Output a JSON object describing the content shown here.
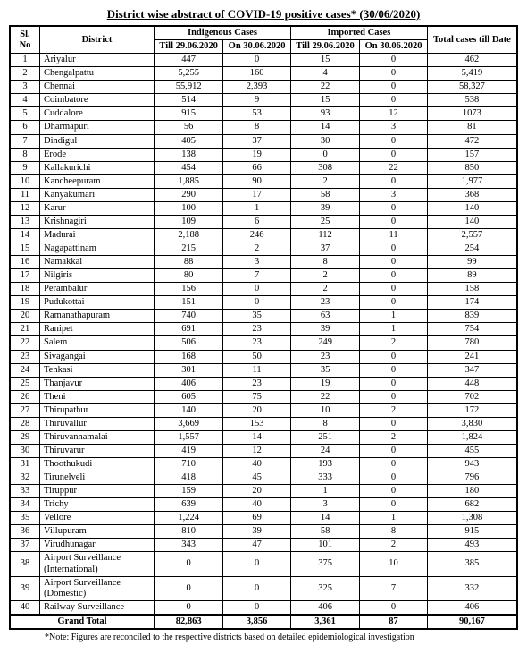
{
  "title": "District wise abstract of COVID-19 positive cases* (30/06/2020)",
  "headers": {
    "sl": "Sl. No",
    "district": "District",
    "indigenous": "Indigenous Cases",
    "imported": "Imported Cases",
    "till": "Till 29.06.2020",
    "on": "On 30.06.2020",
    "total": "Total cases till Date"
  },
  "rows": [
    {
      "sl": "1",
      "d": "Ariyalur",
      "i_t": "447",
      "i_o": "0",
      "m_t": "15",
      "m_o": "0",
      "tot": "462"
    },
    {
      "sl": "2",
      "d": "Chengalpattu",
      "i_t": "5,255",
      "i_o": "160",
      "m_t": "4",
      "m_o": "0",
      "tot": "5,419"
    },
    {
      "sl": "3",
      "d": "Chennai",
      "i_t": "55,912",
      "i_o": "2,393",
      "m_t": "22",
      "m_o": "0",
      "tot": "58,327"
    },
    {
      "sl": "4",
      "d": "Coimbatore",
      "i_t": "514",
      "i_o": "9",
      "m_t": "15",
      "m_o": "0",
      "tot": "538"
    },
    {
      "sl": "5",
      "d": "Cuddalore",
      "i_t": "915",
      "i_o": "53",
      "m_t": "93",
      "m_o": "12",
      "tot": "1073"
    },
    {
      "sl": "6",
      "d": "Dharmapuri",
      "i_t": "56",
      "i_o": "8",
      "m_t": "14",
      "m_o": "3",
      "tot": "81"
    },
    {
      "sl": "7",
      "d": "Dindigul",
      "i_t": "405",
      "i_o": "37",
      "m_t": "30",
      "m_o": "0",
      "tot": "472"
    },
    {
      "sl": "8",
      "d": "Erode",
      "i_t": "138",
      "i_o": "19",
      "m_t": "0",
      "m_o": "0",
      "tot": "157"
    },
    {
      "sl": "9",
      "d": "Kallakurichi",
      "i_t": "454",
      "i_o": "66",
      "m_t": "308",
      "m_o": "22",
      "tot": "850"
    },
    {
      "sl": "10",
      "d": "Kancheepuram",
      "i_t": "1,885",
      "i_o": "90",
      "m_t": "2",
      "m_o": "0",
      "tot": "1,977"
    },
    {
      "sl": "11",
      "d": "Kanyakumari",
      "i_t": "290",
      "i_o": "17",
      "m_t": "58",
      "m_o": "3",
      "tot": "368"
    },
    {
      "sl": "12",
      "d": "Karur",
      "i_t": "100",
      "i_o": "1",
      "m_t": "39",
      "m_o": "0",
      "tot": "140"
    },
    {
      "sl": "13",
      "d": "Krishnagiri",
      "i_t": "109",
      "i_o": "6",
      "m_t": "25",
      "m_o": "0",
      "tot": "140"
    },
    {
      "sl": "14",
      "d": "Madurai",
      "i_t": "2,188",
      "i_o": "246",
      "m_t": "112",
      "m_o": "11",
      "tot": "2,557"
    },
    {
      "sl": "15",
      "d": "Nagapattinam",
      "i_t": "215",
      "i_o": "2",
      "m_t": "37",
      "m_o": "0",
      "tot": "254"
    },
    {
      "sl": "16",
      "d": "Namakkal",
      "i_t": "88",
      "i_o": "3",
      "m_t": "8",
      "m_o": "0",
      "tot": "99"
    },
    {
      "sl": "17",
      "d": "Nilgiris",
      "i_t": "80",
      "i_o": "7",
      "m_t": "2",
      "m_o": "0",
      "tot": "89"
    },
    {
      "sl": "18",
      "d": "Perambalur",
      "i_t": "156",
      "i_o": "0",
      "m_t": "2",
      "m_o": "0",
      "tot": "158"
    },
    {
      "sl": "19",
      "d": "Pudukottai",
      "i_t": "151",
      "i_o": "0",
      "m_t": "23",
      "m_o": "0",
      "tot": "174"
    },
    {
      "sl": "20",
      "d": "Ramanathapuram",
      "i_t": "740",
      "i_o": "35",
      "m_t": "63",
      "m_o": "1",
      "tot": "839"
    },
    {
      "sl": "21",
      "d": "Ranipet",
      "i_t": "691",
      "i_o": "23",
      "m_t": "39",
      "m_o": "1",
      "tot": "754"
    },
    {
      "sl": "22",
      "d": "Salem",
      "i_t": "506",
      "i_o": "23",
      "m_t": "249",
      "m_o": "2",
      "tot": "780"
    },
    {
      "sl": "23",
      "d": "Sivagangai",
      "i_t": "168",
      "i_o": "50",
      "m_t": "23",
      "m_o": "0",
      "tot": "241"
    },
    {
      "sl": "24",
      "d": "Tenkasi",
      "i_t": "301",
      "i_o": "11",
      "m_t": "35",
      "m_o": "0",
      "tot": "347"
    },
    {
      "sl": "25",
      "d": "Thanjavur",
      "i_t": "406",
      "i_o": "23",
      "m_t": "19",
      "m_o": "0",
      "tot": "448"
    },
    {
      "sl": "26",
      "d": "Theni",
      "i_t": "605",
      "i_o": "75",
      "m_t": "22",
      "m_o": "0",
      "tot": "702"
    },
    {
      "sl": "27",
      "d": "Thirupathur",
      "i_t": "140",
      "i_o": "20",
      "m_t": "10",
      "m_o": "2",
      "tot": "172"
    },
    {
      "sl": "28",
      "d": "Thiruvallur",
      "i_t": "3,669",
      "i_o": "153",
      "m_t": "8",
      "m_o": "0",
      "tot": "3,830"
    },
    {
      "sl": "29",
      "d": "Thiruvannamalai",
      "i_t": "1,557",
      "i_o": "14",
      "m_t": "251",
      "m_o": "2",
      "tot": "1,824"
    },
    {
      "sl": "30",
      "d": "Thiruvarur",
      "i_t": "419",
      "i_o": "12",
      "m_t": "24",
      "m_o": "0",
      "tot": "455"
    },
    {
      "sl": "31",
      "d": "Thoothukudi",
      "i_t": "710",
      "i_o": "40",
      "m_t": "193",
      "m_o": "0",
      "tot": "943"
    },
    {
      "sl": "32",
      "d": "Tirunelveli",
      "i_t": "418",
      "i_o": "45",
      "m_t": "333",
      "m_o": "0",
      "tot": "796"
    },
    {
      "sl": "33",
      "d": "Tiruppur",
      "i_t": "159",
      "i_o": "20",
      "m_t": "1",
      "m_o": "0",
      "tot": "180"
    },
    {
      "sl": "34",
      "d": "Trichy",
      "i_t": "639",
      "i_o": "40",
      "m_t": "3",
      "m_o": "0",
      "tot": "682"
    },
    {
      "sl": "35",
      "d": "Vellore",
      "i_t": "1,224",
      "i_o": "69",
      "m_t": "14",
      "m_o": "1",
      "tot": "1,308"
    },
    {
      "sl": "36",
      "d": "Villupuram",
      "i_t": "810",
      "i_o": "39",
      "m_t": "58",
      "m_o": "8",
      "tot": "915"
    },
    {
      "sl": "37",
      "d": "Virudhunagar",
      "i_t": "343",
      "i_o": "47",
      "m_t": "101",
      "m_o": "2",
      "tot": "493"
    },
    {
      "sl": "38",
      "d": "Airport Surveillance (International)",
      "i_t": "0",
      "i_o": "0",
      "m_t": "375",
      "m_o": "10",
      "tot": "385"
    },
    {
      "sl": "39",
      "d": "Airport Surveillance (Domestic)",
      "i_t": "0",
      "i_o": "0",
      "m_t": "325",
      "m_o": "7",
      "tot": "332"
    },
    {
      "sl": "40",
      "d": "Railway Surveillance",
      "i_t": "0",
      "i_o": "0",
      "m_t": "406",
      "m_o": "0",
      "tot": "406"
    }
  ],
  "grand": {
    "label": "Grand Total",
    "i_t": "82,863",
    "i_o": "3,856",
    "m_t": "3,361",
    "m_o": "87",
    "tot": "90,167"
  },
  "footnote": "*Note: Figures are reconciled to the respective districts based on detailed epidemiological investigation",
  "style": {
    "background_color": "#ffffff",
    "text_color": "#000000",
    "border_color": "#000000",
    "title_fontsize": 13,
    "body_fontsize": 10.5,
    "font_family": "Georgia, serif"
  }
}
